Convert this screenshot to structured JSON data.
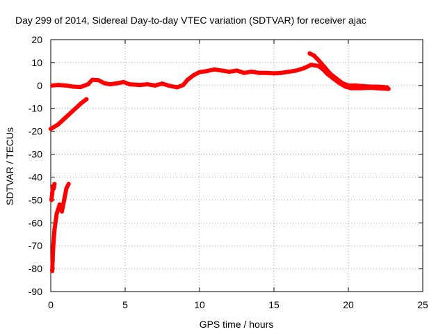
{
  "chart_data": {
    "type": "scatter",
    "title": "Day 299 of 2014, Sidereal Day-to-day VTEC variation (SDTVAR) for receiver ajac",
    "xlabel": "GPS time / hours",
    "ylabel": "SDTVAR / TECUs",
    "xlim": [
      0,
      25
    ],
    "ylim": [
      -90,
      20
    ],
    "x_ticks": [
      "0",
      "5",
      "10",
      "15",
      "20",
      "25"
    ],
    "y_ticks": [
      "20",
      "10",
      "0",
      "-10",
      "-20",
      "-30",
      "-40",
      "-50",
      "-60",
      "-70",
      "-80",
      "-90"
    ],
    "x_tick_values": [
      0,
      5,
      10,
      15,
      20,
      25
    ],
    "y_tick_values": [
      20,
      10,
      0,
      -10,
      -20,
      -30,
      -40,
      -50,
      -60,
      -70,
      -80,
      -90
    ],
    "grid": true,
    "legend": "none",
    "series": [
      {
        "color": "#ff0000",
        "points": [
          [
            0.1,
            -81
          ],
          [
            0.15,
            -72
          ],
          [
            0.25,
            -63
          ],
          [
            0.4,
            -56
          ],
          [
            0.6,
            -52
          ],
          [
            0.75,
            -55
          ],
          [
            0.9,
            -50
          ],
          [
            1.05,
            -45
          ],
          [
            1.2,
            -43
          ]
        ]
      },
      {
        "color": "#ff0000",
        "points": [
          [
            0.05,
            -50
          ],
          [
            0.1,
            -47
          ],
          [
            0.15,
            -44
          ],
          [
            0.2,
            -45
          ],
          [
            0.25,
            -43
          ]
        ]
      },
      {
        "color": "#ff0000",
        "points": [
          [
            0.0,
            -19
          ],
          [
            0.5,
            -17
          ],
          [
            1.0,
            -14
          ],
          [
            1.5,
            -11
          ],
          [
            2.0,
            -8
          ],
          [
            2.4,
            -6
          ]
        ]
      },
      {
        "color": "#ff0000",
        "points": [
          [
            0.1,
            0
          ],
          [
            0.5,
            0.2
          ],
          [
            1.0,
            0
          ],
          [
            1.5,
            -0.5
          ],
          [
            2.0,
            -0.7
          ],
          [
            2.5,
            0.5
          ],
          [
            2.8,
            2.5
          ],
          [
            3.2,
            2.3
          ],
          [
            3.6,
            1
          ],
          [
            4.0,
            0.5
          ],
          [
            4.5,
            1
          ],
          [
            4.9,
            1.5
          ],
          [
            5.3,
            0.5
          ],
          [
            6.0,
            0.2
          ],
          [
            6.5,
            0.5
          ],
          [
            7.0,
            0
          ],
          [
            7.5,
            0.8
          ],
          [
            8.0,
            -0.2
          ],
          [
            8.5,
            -0.8
          ],
          [
            8.9,
            0.2
          ],
          [
            9.2,
            2.5
          ],
          [
            9.6,
            4.5
          ],
          [
            10.0,
            5.8
          ],
          [
            10.5,
            6.3
          ],
          [
            11.0,
            7
          ],
          [
            11.5,
            6.5
          ],
          [
            12.0,
            6
          ],
          [
            12.5,
            6.5
          ],
          [
            13.0,
            5.5
          ],
          [
            13.5,
            6
          ],
          [
            14.0,
            5.5
          ],
          [
            14.5,
            5.5
          ],
          [
            15.0,
            5.3
          ],
          [
            15.5,
            5.5
          ],
          [
            16.0,
            6
          ],
          [
            16.5,
            6.5
          ],
          [
            17.0,
            7.5
          ],
          [
            17.5,
            9
          ],
          [
            18.0,
            8.5
          ],
          [
            18.3,
            7
          ],
          [
            18.6,
            5
          ],
          [
            19.0,
            3
          ],
          [
            19.4,
            1
          ],
          [
            19.8,
            -0.5
          ],
          [
            20.2,
            -1.2
          ],
          [
            20.8,
            -1.2
          ],
          [
            21.5,
            -1
          ],
          [
            22.2,
            -1.3
          ],
          [
            22.7,
            -1.5
          ]
        ]
      },
      {
        "color": "#ff0000",
        "points": [
          [
            17.4,
            14
          ],
          [
            17.7,
            13
          ],
          [
            18.0,
            11
          ],
          [
            18.4,
            8
          ],
          [
            18.8,
            5
          ],
          [
            19.2,
            3
          ],
          [
            19.6,
            1
          ],
          [
            20.0,
            0
          ],
          [
            20.5,
            0
          ],
          [
            21.0,
            -0.3
          ],
          [
            21.5,
            -0.5
          ],
          [
            22.0,
            -0.5
          ],
          [
            22.6,
            -0.8
          ]
        ]
      }
    ]
  }
}
